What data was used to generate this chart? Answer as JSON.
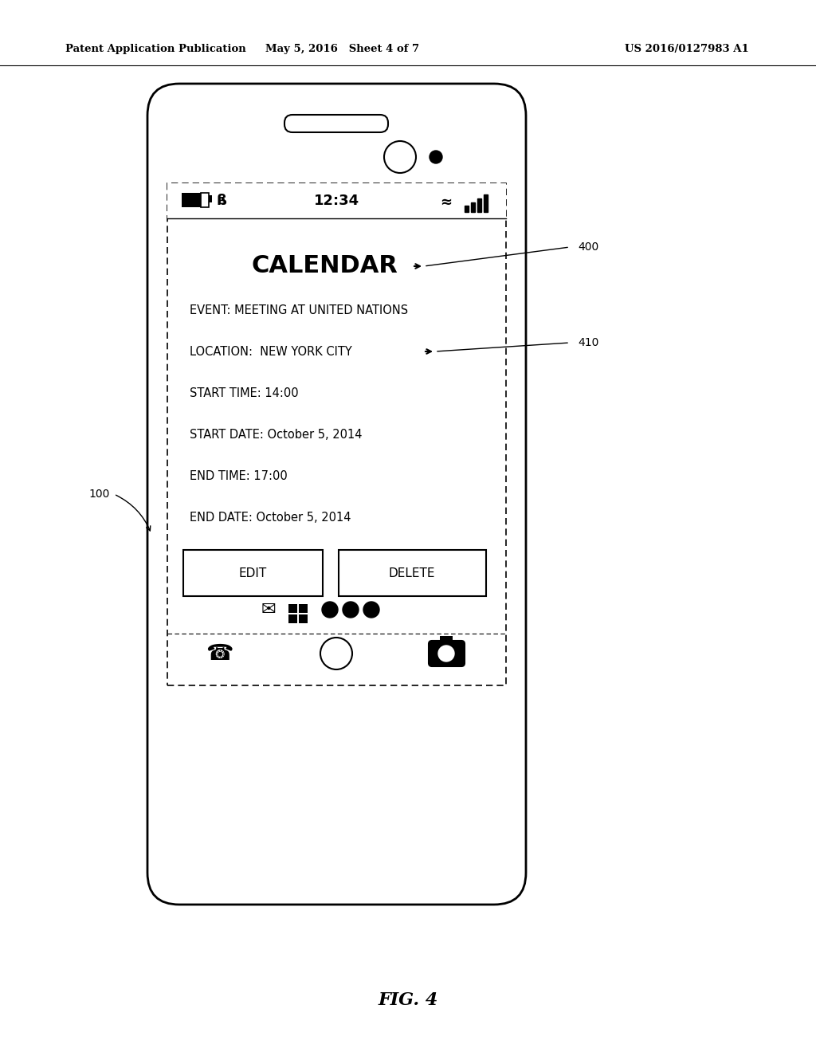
{
  "background_color": "#ffffff",
  "header_left": "Patent Application Publication",
  "header_center": "May 5, 2016   Sheet 4 of 7",
  "header_right": "US 2016/0127983 A1",
  "figure_label": "FIG. 4",
  "status_bar_time": "12:34",
  "calendar_title": "CALENDAR",
  "event_lines": [
    "EVENT: MEETING AT UNITED NATIONS",
    "LOCATION:  NEW YORK CITY",
    "START TIME: 14:00",
    "START DATE: October 5, 2014",
    "END TIME: 17:00",
    "END DATE: October 5, 2014"
  ],
  "label_100": "100",
  "label_400": "400",
  "label_410": "410",
  "btn_edit": "EDIT",
  "btn_delete": "DELETE"
}
